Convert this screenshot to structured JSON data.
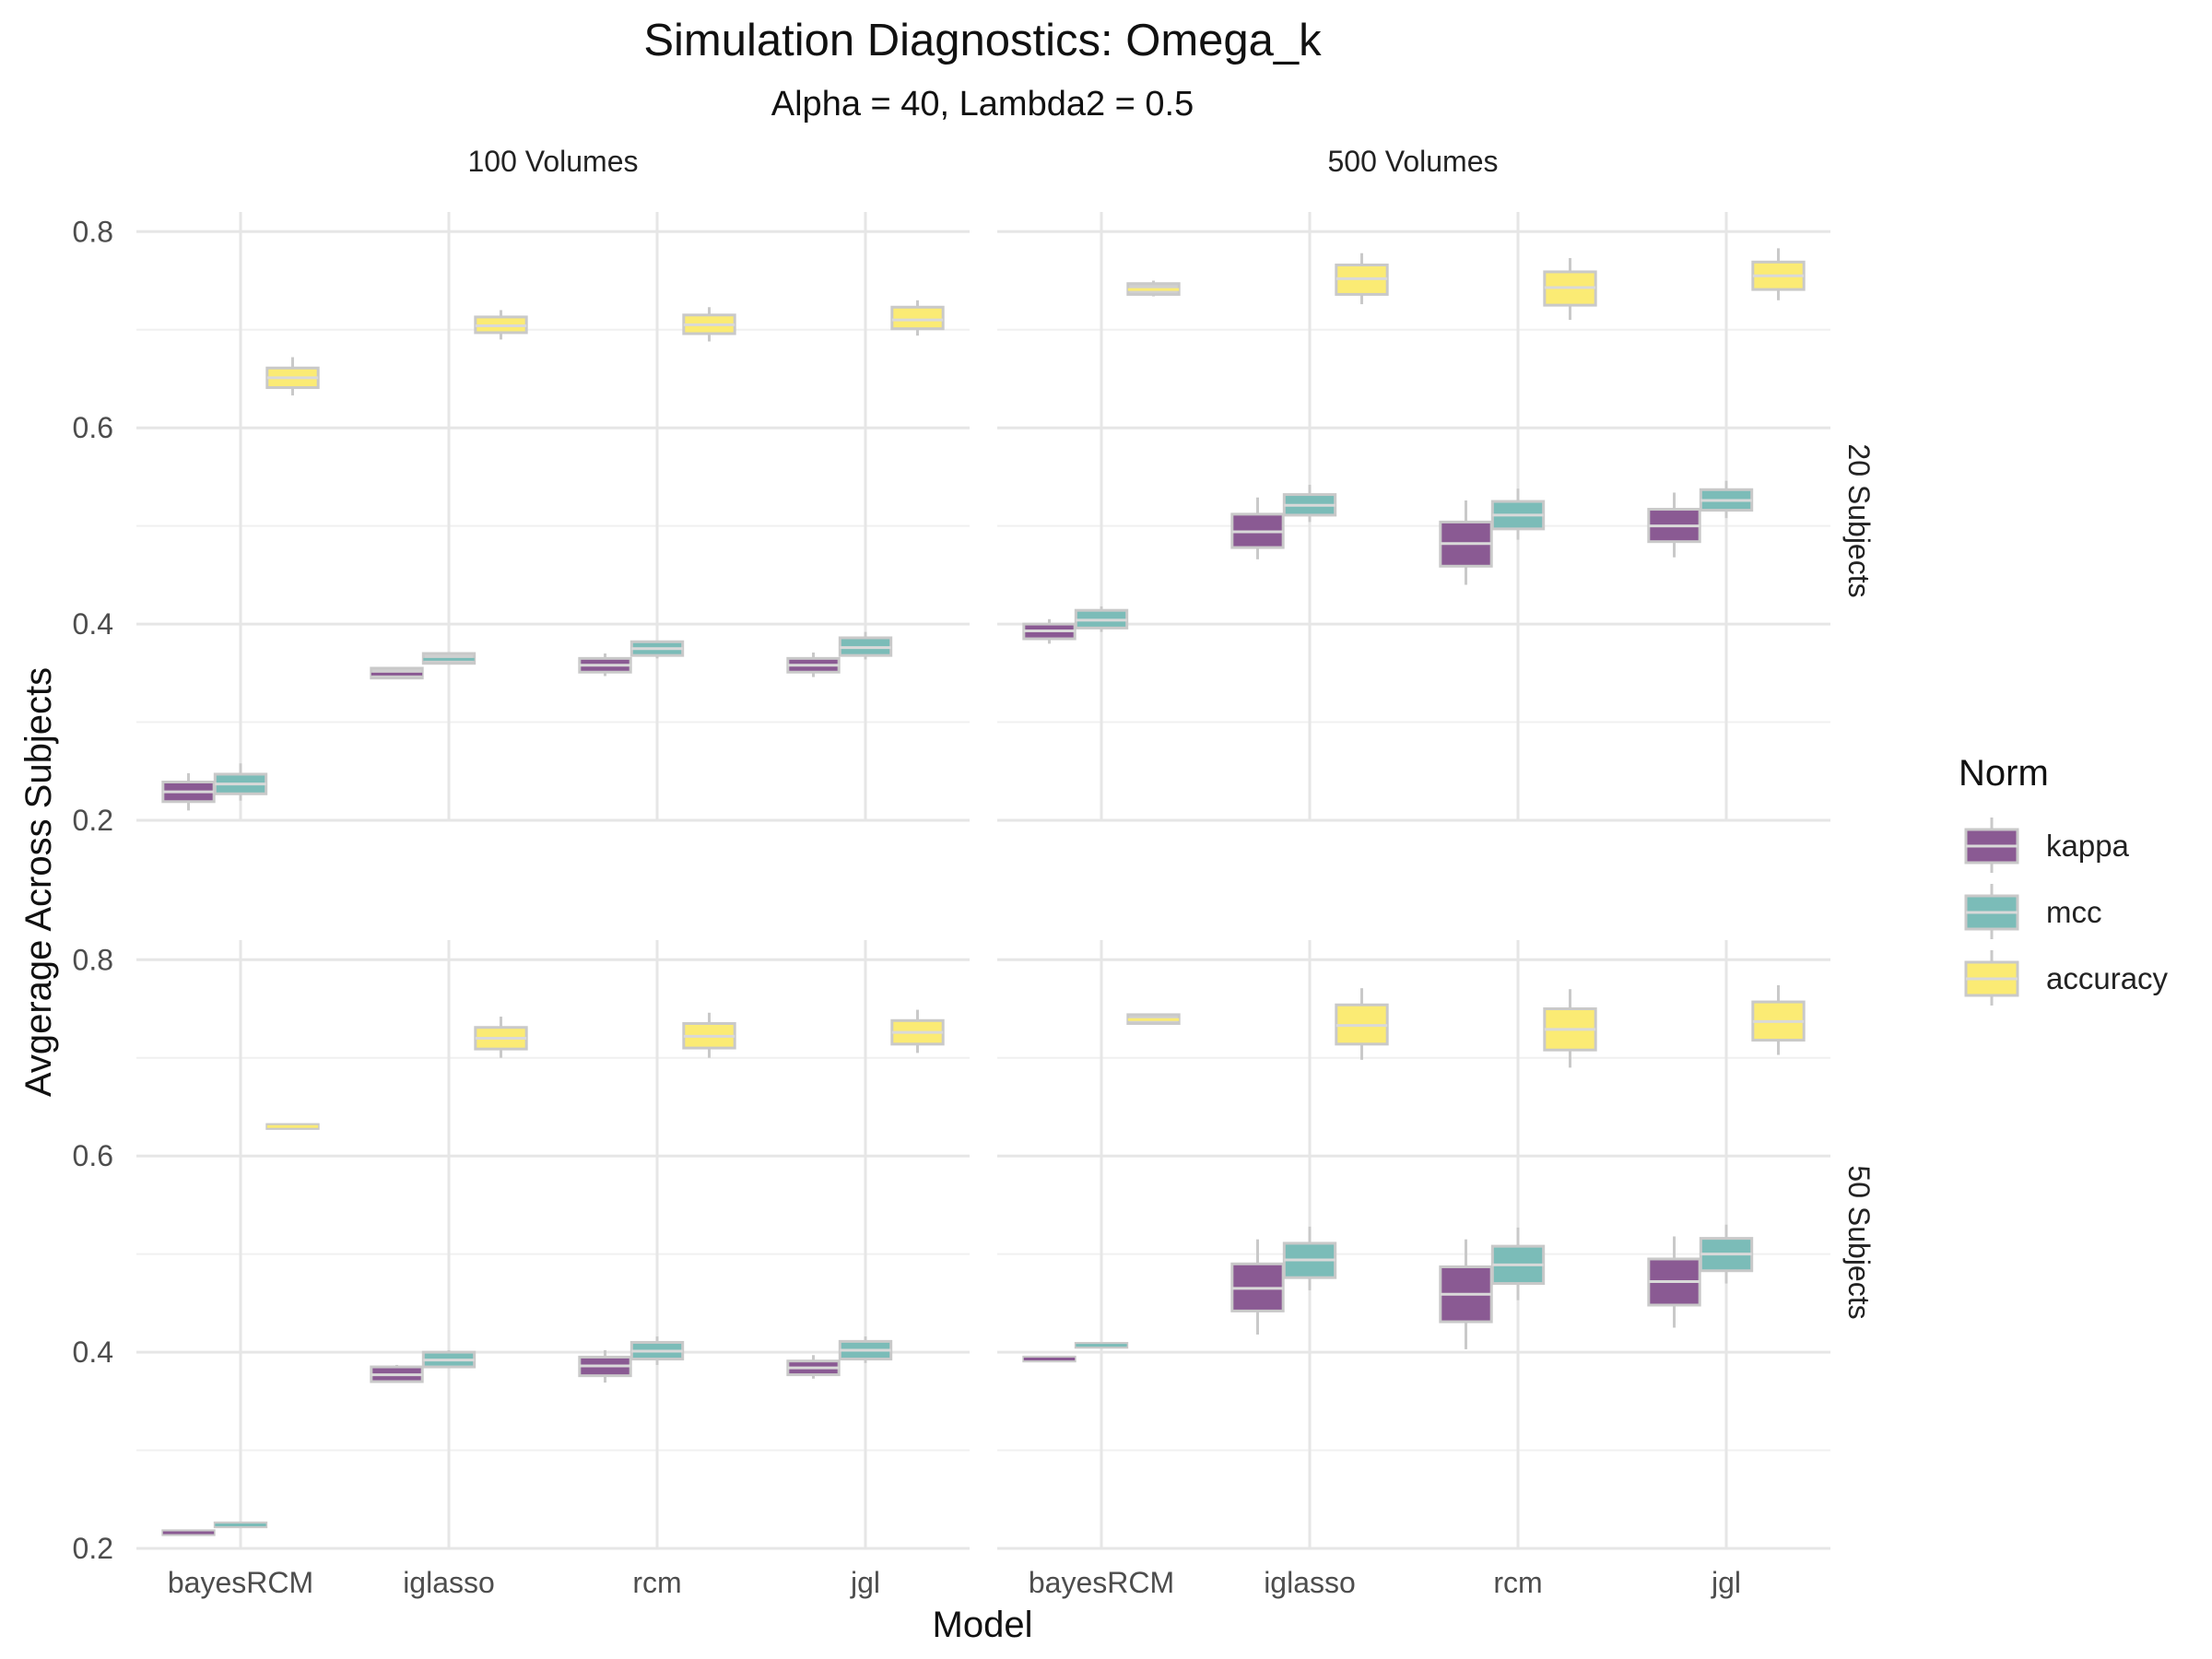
{
  "chart_data": {
    "type": "boxplot",
    "title": "Simulation Diagnostics: Omega_k",
    "subtitle": "Alpha = 40, Lambda2 = 0.5",
    "xlabel": "Model",
    "ylabel": "Avgerage Across Subjects",
    "categories": [
      "bayesRCM",
      "iglasso",
      "rcm",
      "jgl"
    ],
    "col_facets": [
      "100 Volumes",
      "500 Volumes"
    ],
    "row_facets": [
      "20 Subjects",
      "50 Subjects"
    ],
    "y_ticks": [
      0.2,
      0.4,
      0.6,
      0.8
    ],
    "y_tick_labels": [
      "0.2",
      "0.4",
      "0.6",
      "0.8"
    ],
    "legend": {
      "title": "Norm",
      "position": "right",
      "items": [
        {
          "name": "kappa",
          "color": "#8a5a93"
        },
        {
          "name": "mcc",
          "color": "#7bbcb8"
        },
        {
          "name": "accuracy",
          "color": "#fbeb74"
        }
      ]
    },
    "grid": true,
    "panels": [
      {
        "row": 0,
        "col": 0,
        "ylim": [
          0.2,
          0.82
        ],
        "boxes": [
          {
            "model": "bayesRCM",
            "norm": "kappa",
            "low": 0.21,
            "q1": 0.219,
            "median": 0.229,
            "q3": 0.239,
            "high": 0.248
          },
          {
            "model": "bayesRCM",
            "norm": "mcc",
            "low": 0.22,
            "q1": 0.227,
            "median": 0.237,
            "q3": 0.247,
            "high": 0.258
          },
          {
            "model": "bayesRCM",
            "norm": "accuracy",
            "low": 0.633,
            "q1": 0.641,
            "median": 0.651,
            "q3": 0.661,
            "high": 0.672
          },
          {
            "model": "iglasso",
            "norm": "kappa",
            "low": 0.344,
            "q1": 0.345,
            "median": 0.349,
            "q3": 0.355,
            "high": 0.356
          },
          {
            "model": "iglasso",
            "norm": "mcc",
            "low": 0.359,
            "q1": 0.36,
            "median": 0.364,
            "q3": 0.37,
            "high": 0.371
          },
          {
            "model": "iglasso",
            "norm": "accuracy",
            "low": 0.69,
            "q1": 0.697,
            "median": 0.704,
            "q3": 0.713,
            "high": 0.72
          },
          {
            "model": "rcm",
            "norm": "kappa",
            "low": 0.347,
            "q1": 0.351,
            "median": 0.358,
            "q3": 0.365,
            "high": 0.37
          },
          {
            "model": "rcm",
            "norm": "mcc",
            "low": 0.365,
            "q1": 0.368,
            "median": 0.375,
            "q3": 0.382,
            "high": 0.383
          },
          {
            "model": "rcm",
            "norm": "accuracy",
            "low": 0.688,
            "q1": 0.696,
            "median": 0.705,
            "q3": 0.715,
            "high": 0.723
          },
          {
            "model": "jgl",
            "norm": "kappa",
            "low": 0.346,
            "q1": 0.351,
            "median": 0.358,
            "q3": 0.365,
            "high": 0.371
          },
          {
            "model": "jgl",
            "norm": "mcc",
            "low": 0.364,
            "q1": 0.368,
            "median": 0.376,
            "q3": 0.386,
            "high": 0.392
          },
          {
            "model": "jgl",
            "norm": "accuracy",
            "low": 0.694,
            "q1": 0.701,
            "median": 0.71,
            "q3": 0.723,
            "high": 0.73
          }
        ]
      },
      {
        "row": 0,
        "col": 1,
        "ylim": [
          0.2,
          0.82
        ],
        "boxes": [
          {
            "model": "bayesRCM",
            "norm": "kappa",
            "low": 0.38,
            "q1": 0.385,
            "median": 0.393,
            "q3": 0.4,
            "high": 0.405
          },
          {
            "model": "bayesRCM",
            "norm": "mcc",
            "low": 0.392,
            "q1": 0.396,
            "median": 0.404,
            "q3": 0.414,
            "high": 0.418
          },
          {
            "model": "bayesRCM",
            "norm": "accuracy",
            "low": 0.734,
            "q1": 0.736,
            "median": 0.741,
            "q3": 0.747,
            "high": 0.75
          },
          {
            "model": "iglasso",
            "norm": "kappa",
            "low": 0.466,
            "q1": 0.478,
            "median": 0.494,
            "q3": 0.512,
            "high": 0.529
          },
          {
            "model": "iglasso",
            "norm": "mcc",
            "low": 0.504,
            "q1": 0.511,
            "median": 0.521,
            "q3": 0.532,
            "high": 0.542
          },
          {
            "model": "iglasso",
            "norm": "accuracy",
            "low": 0.726,
            "q1": 0.736,
            "median": 0.752,
            "q3": 0.766,
            "high": 0.778
          },
          {
            "model": "rcm",
            "norm": "kappa",
            "low": 0.44,
            "q1": 0.459,
            "median": 0.482,
            "q3": 0.504,
            "high": 0.526
          },
          {
            "model": "rcm",
            "norm": "mcc",
            "low": 0.486,
            "q1": 0.497,
            "median": 0.511,
            "q3": 0.525,
            "high": 0.538
          },
          {
            "model": "rcm",
            "norm": "accuracy",
            "low": 0.71,
            "q1": 0.725,
            "median": 0.743,
            "q3": 0.759,
            "high": 0.773
          },
          {
            "model": "jgl",
            "norm": "kappa",
            "low": 0.468,
            "q1": 0.484,
            "median": 0.5,
            "q3": 0.517,
            "high": 0.534
          },
          {
            "model": "jgl",
            "norm": "mcc",
            "low": 0.508,
            "q1": 0.516,
            "median": 0.526,
            "q3": 0.537,
            "high": 0.546
          },
          {
            "model": "jgl",
            "norm": "accuracy",
            "low": 0.73,
            "q1": 0.741,
            "median": 0.755,
            "q3": 0.769,
            "high": 0.783
          }
        ]
      },
      {
        "row": 1,
        "col": 0,
        "ylim": [
          0.2,
          0.82
        ],
        "boxes": [
          {
            "model": "bayesRCM",
            "norm": "kappa",
            "low": 0.213,
            "q1": 0.214,
            "median": 0.216,
            "q3": 0.218,
            "high": 0.219
          },
          {
            "model": "bayesRCM",
            "norm": "mcc",
            "low": 0.221,
            "q1": 0.222,
            "median": 0.224,
            "q3": 0.226,
            "high": 0.227
          },
          {
            "model": "bayesRCM",
            "norm": "accuracy",
            "low": 0.627,
            "q1": 0.628,
            "median": 0.63,
            "q3": 0.632,
            "high": 0.633
          },
          {
            "model": "iglasso",
            "norm": "kappa",
            "low": 0.369,
            "q1": 0.37,
            "median": 0.377,
            "q3": 0.385,
            "high": 0.387
          },
          {
            "model": "iglasso",
            "norm": "mcc",
            "low": 0.384,
            "q1": 0.385,
            "median": 0.392,
            "q3": 0.4,
            "high": 0.402
          },
          {
            "model": "iglasso",
            "norm": "accuracy",
            "low": 0.7,
            "q1": 0.709,
            "median": 0.72,
            "q3": 0.731,
            "high": 0.742
          },
          {
            "model": "rcm",
            "norm": "kappa",
            "low": 0.369,
            "q1": 0.376,
            "median": 0.386,
            "q3": 0.395,
            "high": 0.402
          },
          {
            "model": "rcm",
            "norm": "mcc",
            "low": 0.387,
            "q1": 0.393,
            "median": 0.401,
            "q3": 0.41,
            "high": 0.416
          },
          {
            "model": "rcm",
            "norm": "accuracy",
            "low": 0.7,
            "q1": 0.71,
            "median": 0.722,
            "q3": 0.735,
            "high": 0.746
          },
          {
            "model": "jgl",
            "norm": "kappa",
            "low": 0.373,
            "q1": 0.377,
            "median": 0.384,
            "q3": 0.391,
            "high": 0.397
          },
          {
            "model": "jgl",
            "norm": "mcc",
            "low": 0.389,
            "q1": 0.393,
            "median": 0.402,
            "q3": 0.411,
            "high": 0.416
          },
          {
            "model": "jgl",
            "norm": "accuracy",
            "low": 0.705,
            "q1": 0.714,
            "median": 0.726,
            "q3": 0.738,
            "high": 0.749
          }
        ]
      },
      {
        "row": 1,
        "col": 1,
        "ylim": [
          0.2,
          0.82
        ],
        "boxes": [
          {
            "model": "bayesRCM",
            "norm": "kappa",
            "low": 0.39,
            "q1": 0.391,
            "median": 0.393,
            "q3": 0.395,
            "high": 0.396
          },
          {
            "model": "bayesRCM",
            "norm": "mcc",
            "low": 0.404,
            "q1": 0.405,
            "median": 0.407,
            "q3": 0.409,
            "high": 0.41
          },
          {
            "model": "bayesRCM",
            "norm": "accuracy",
            "low": 0.734,
            "q1": 0.735,
            "median": 0.739,
            "q3": 0.744,
            "high": 0.745
          },
          {
            "model": "iglasso",
            "norm": "kappa",
            "low": 0.418,
            "q1": 0.442,
            "median": 0.465,
            "q3": 0.49,
            "high": 0.515
          },
          {
            "model": "iglasso",
            "norm": "mcc",
            "low": 0.463,
            "q1": 0.476,
            "median": 0.494,
            "q3": 0.511,
            "high": 0.528
          },
          {
            "model": "iglasso",
            "norm": "accuracy",
            "low": 0.698,
            "q1": 0.714,
            "median": 0.733,
            "q3": 0.754,
            "high": 0.771
          },
          {
            "model": "rcm",
            "norm": "kappa",
            "low": 0.403,
            "q1": 0.431,
            "median": 0.459,
            "q3": 0.487,
            "high": 0.515
          },
          {
            "model": "rcm",
            "norm": "mcc",
            "low": 0.453,
            "q1": 0.47,
            "median": 0.489,
            "q3": 0.508,
            "high": 0.527
          },
          {
            "model": "rcm",
            "norm": "accuracy",
            "low": 0.69,
            "q1": 0.708,
            "median": 0.729,
            "q3": 0.75,
            "high": 0.77
          },
          {
            "model": "jgl",
            "norm": "kappa",
            "low": 0.425,
            "q1": 0.448,
            "median": 0.472,
            "q3": 0.495,
            "high": 0.518
          },
          {
            "model": "jgl",
            "norm": "mcc",
            "low": 0.47,
            "q1": 0.483,
            "median": 0.5,
            "q3": 0.516,
            "high": 0.53
          },
          {
            "model": "jgl",
            "norm": "accuracy",
            "low": 0.703,
            "q1": 0.718,
            "median": 0.737,
            "q3": 0.757,
            "high": 0.774
          }
        ]
      }
    ]
  }
}
